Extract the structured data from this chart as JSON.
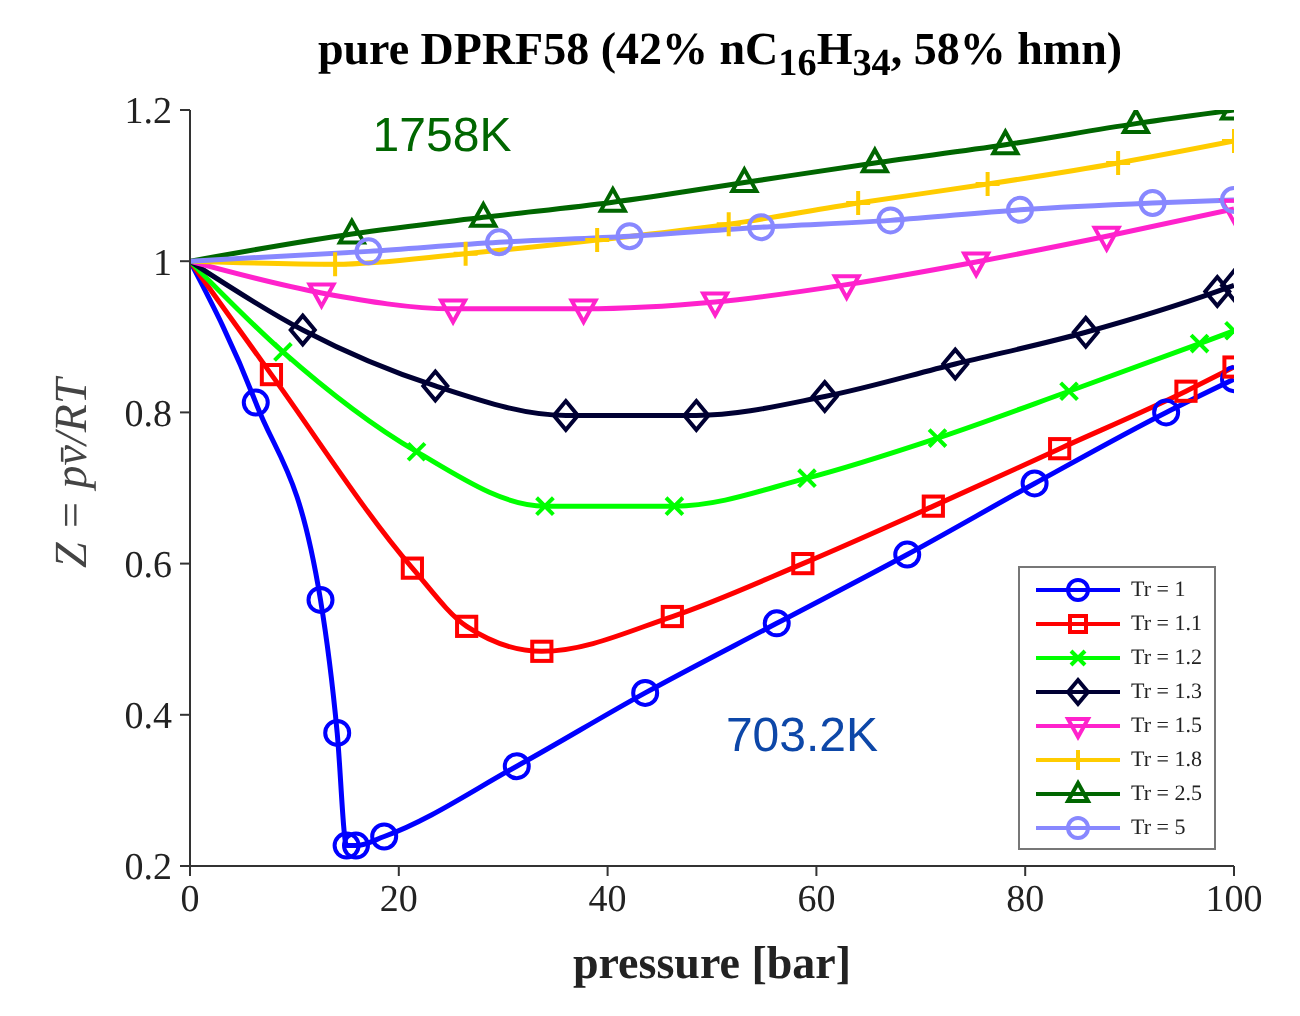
{
  "chart_data": {
    "type": "line",
    "title": "pure DPRF58 (42% nC$_{16}$H$_{34}$, 58% hmn)",
    "xlabel": "pressure [bar]",
    "ylabel": "Z = pv̄/RT",
    "xlim": [
      0,
      100
    ],
    "xticks": [
      0,
      20,
      40,
      60,
      80,
      100
    ],
    "ylim": [
      0.2,
      1.2
    ],
    "yticks": [
      0.2,
      0.4,
      0.6,
      0.8,
      1,
      1.2
    ],
    "legend": "bottom right",
    "annotations": [
      "1758K",
      "703.2K"
    ],
    "series": [
      {
        "name": "Tr = 1",
        "color": "#0000ff",
        "marker": "circle",
        "x": [
          0,
          6.3,
          12.5,
          14.1,
          15,
          15.9,
          18.6,
          31.3,
          43.6,
          56.2,
          68.7,
          80.9,
          93.5,
          100
        ],
        "values": [
          1,
          0.813,
          0.552,
          0.376,
          0.227,
          0.227,
          0.239,
          0.332,
          0.429,
          0.521,
          0.612,
          0.706,
          0.8,
          0.844
        ]
      },
      {
        "name": "Tr = 1.1",
        "color": "#ff0000",
        "marker": "square",
        "x": [
          0,
          7.8,
          21.3,
          26.5,
          33.7,
          46.2,
          58.7,
          71.2,
          83.3,
          95.4,
          100
        ],
        "values": [
          1,
          0.85,
          0.594,
          0.517,
          0.484,
          0.53,
          0.6,
          0.676,
          0.752,
          0.828,
          0.86
        ]
      },
      {
        "name": "Tr = 1.2",
        "color": "#00ff00",
        "marker": "cross",
        "x": [
          0,
          8.9,
          21.7,
          34,
          46.4,
          59.1,
          71.6,
          84.2,
          96.7,
          100
        ],
        "values": [
          1,
          0.88,
          0.748,
          0.676,
          0.676,
          0.713,
          0.766,
          0.828,
          0.891,
          0.908
        ]
      },
      {
        "name": "Tr = 1.3",
        "color": "#000033",
        "marker": "diamond",
        "x": [
          0,
          10.8,
          23.5,
          36,
          48.5,
          60.8,
          73.3,
          85.8,
          98.4,
          100
        ],
        "values": [
          1,
          0.909,
          0.835,
          0.796,
          0.796,
          0.821,
          0.864,
          0.906,
          0.96,
          0.968
        ]
      },
      {
        "name": "Tr = 1.5",
        "color": "#ff22cc",
        "marker": "triangle-down",
        "x": [
          0,
          12.6,
          25.2,
          37.7,
          50.3,
          62.9,
          75.3,
          87.8,
          100
        ],
        "values": [
          1,
          0.958,
          0.937,
          0.937,
          0.946,
          0.969,
          0.999,
          1.033,
          1.069
        ]
      },
      {
        "name": "Tr = 1.8",
        "color": "#ffcc00",
        "marker": "plus",
        "x": [
          0,
          13.9,
          26.4,
          39,
          51.6,
          64,
          76.4,
          88.9,
          100
        ],
        "values": [
          1,
          0.996,
          1.01,
          1.028,
          1.049,
          1.077,
          1.102,
          1.13,
          1.159
        ]
      },
      {
        "name": "Tr = 2.5",
        "color": "#006600",
        "marker": "triangle",
        "x": [
          0,
          15.5,
          28.1,
          40.5,
          53.1,
          65.6,
          78.1,
          90.6,
          100
        ],
        "values": [
          1,
          1.036,
          1.058,
          1.078,
          1.104,
          1.13,
          1.154,
          1.182,
          1.2
        ]
      },
      {
        "name": "Tr = 5",
        "color": "#8888ff",
        "marker": "circle",
        "x": [
          0,
          17.1,
          29.6,
          42.1,
          54.7,
          67.1,
          79.5,
          92.2,
          100
        ],
        "values": [
          1,
          1.013,
          1.025,
          1.033,
          1.045,
          1.054,
          1.068,
          1.077,
          1.081
        ]
      }
    ]
  }
}
